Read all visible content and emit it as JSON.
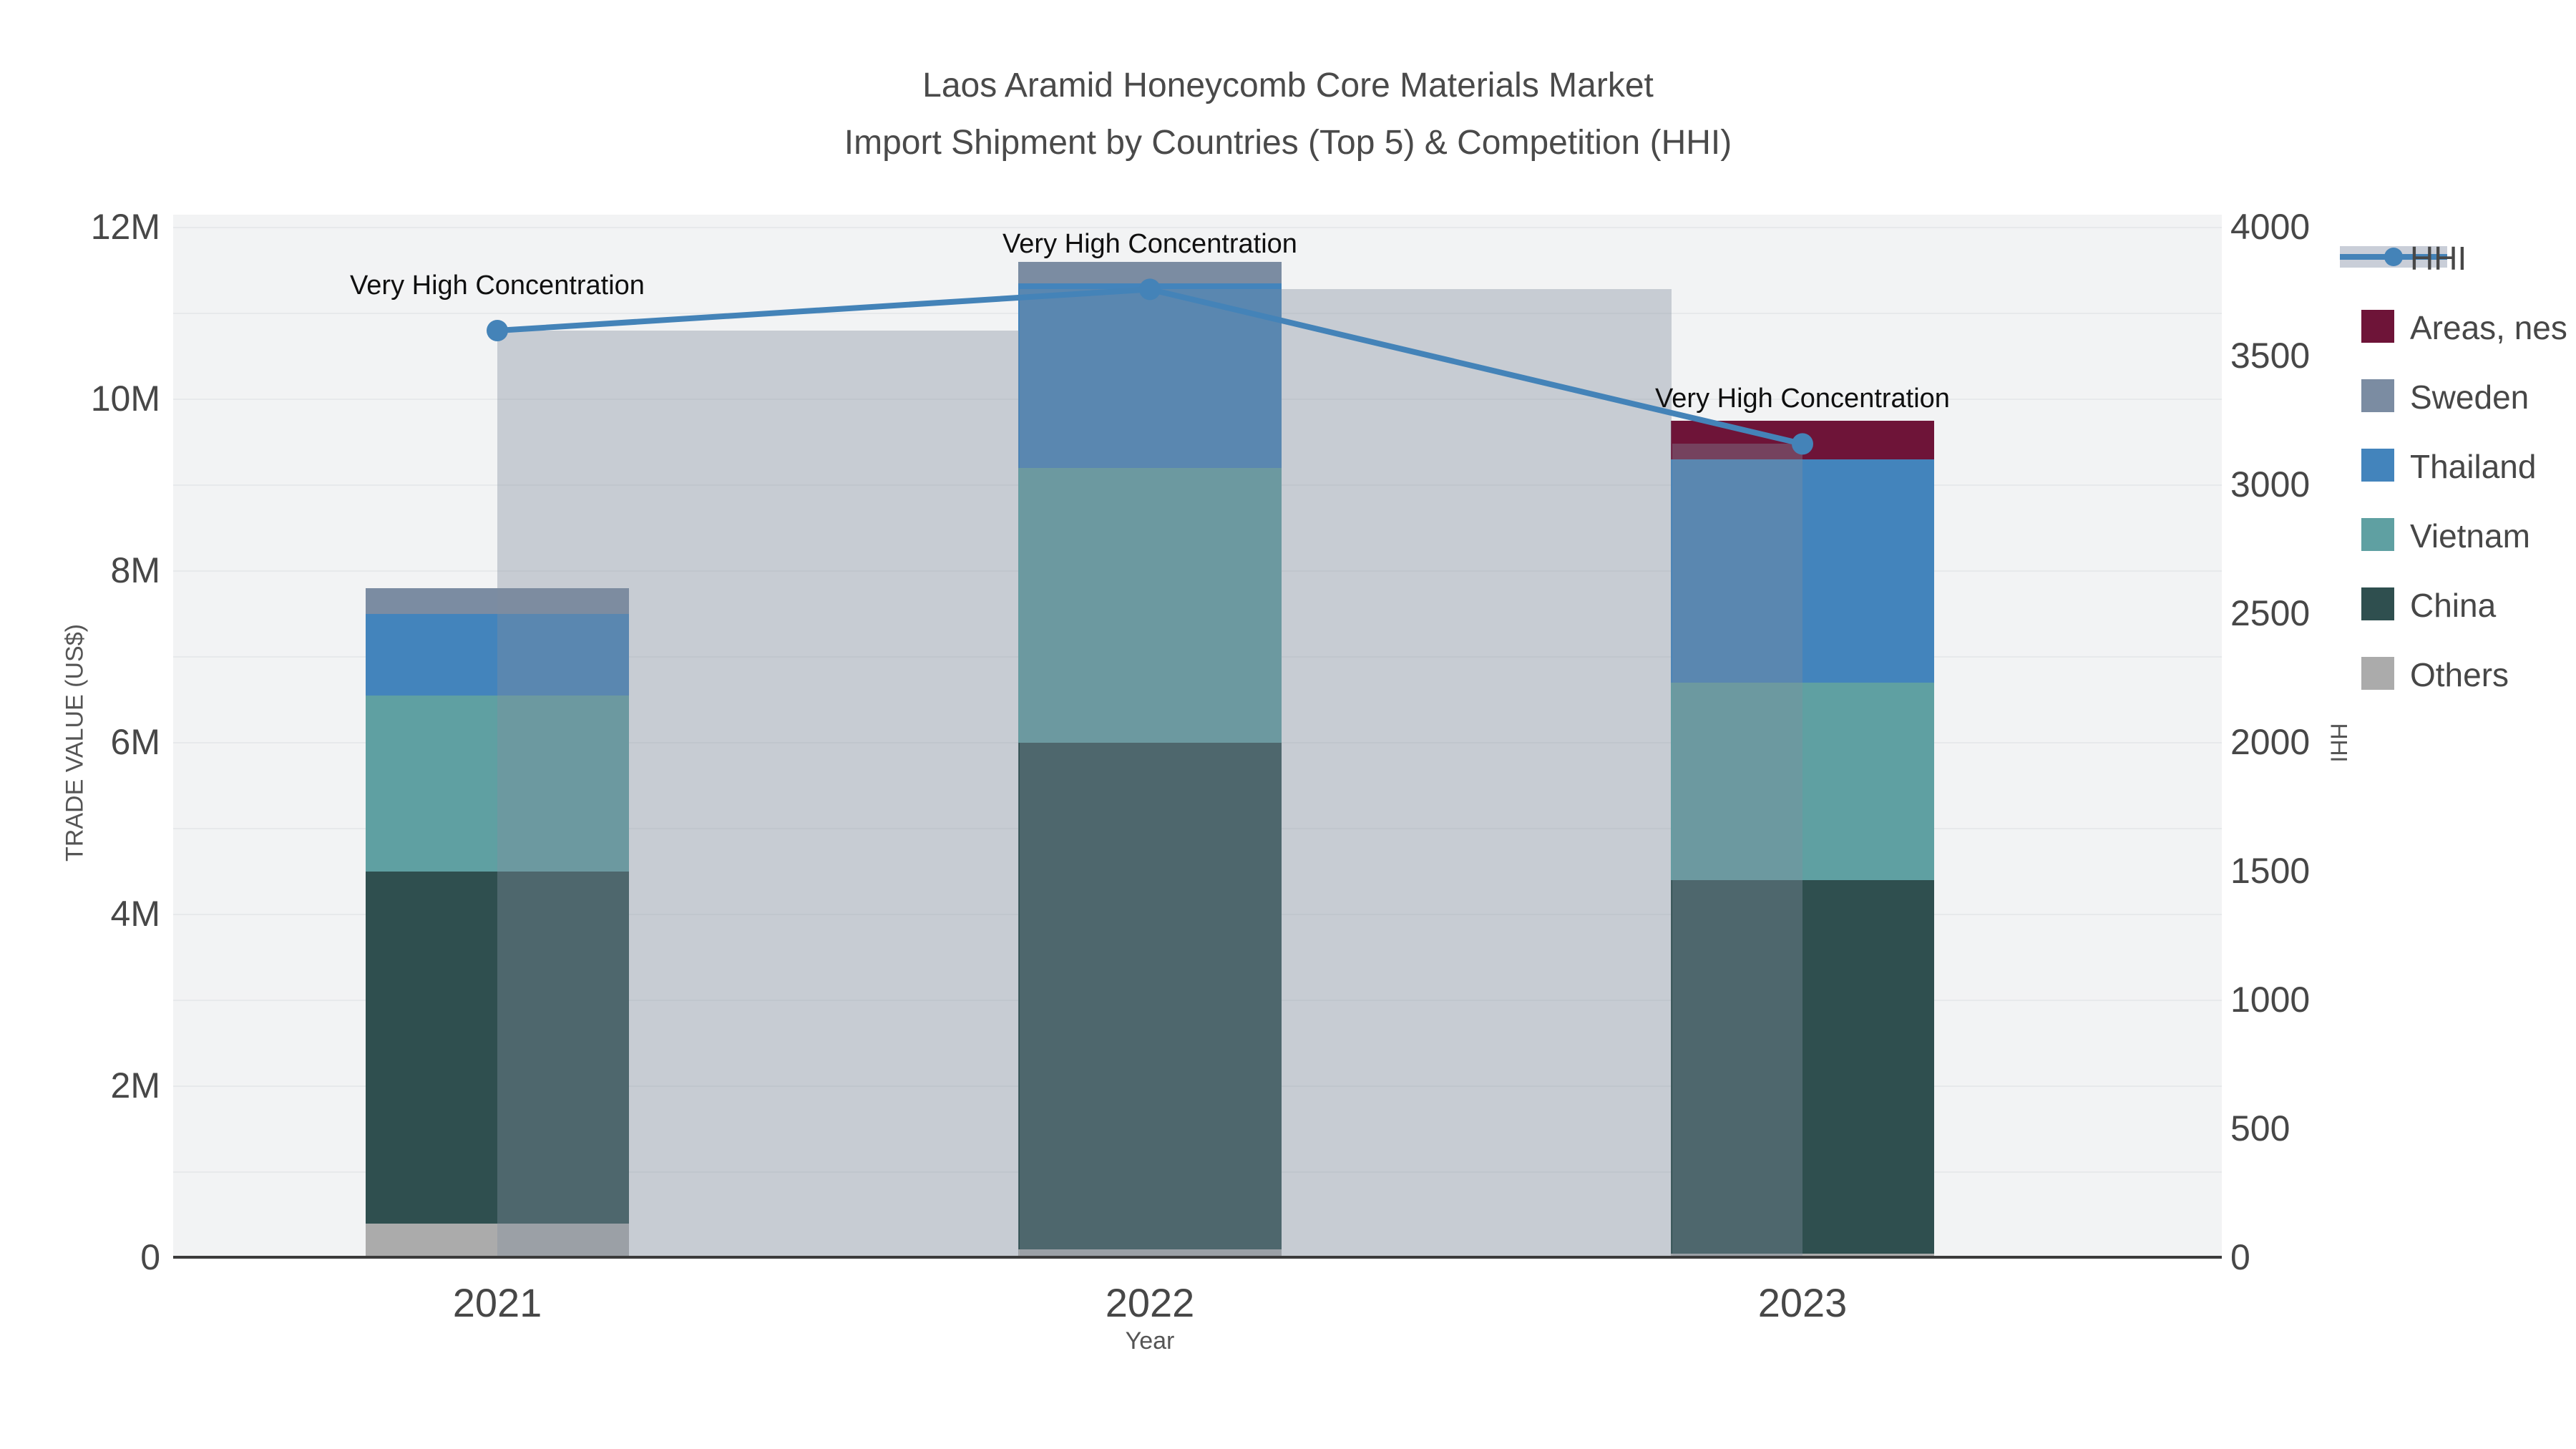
{
  "title": {
    "line1": "Laos Aramid Honeycomb Core Materials Market",
    "line2": "Import Shipment by Countries (Top 5) & Competition (HHI)"
  },
  "axes": {
    "x": {
      "label": "Year",
      "categories": [
        "2021",
        "2022",
        "2023"
      ]
    },
    "y_left": {
      "label": "TRADE VALUE (US$)",
      "ticks": [
        "0",
        "2M",
        "4M",
        "6M",
        "8M",
        "10M",
        "12M"
      ]
    },
    "y_right": {
      "label": "HHI",
      "ticks": [
        "0",
        "500",
        "1000",
        "1500",
        "2000",
        "2500",
        "3000",
        "3500",
        "4000"
      ]
    }
  },
  "legend": [
    {
      "label": "HHI",
      "swatch": "line"
    },
    {
      "label": "Areas, nes",
      "swatch": "#6e1438"
    },
    {
      "label": "Sweden",
      "swatch": "#7b8ca2"
    },
    {
      "label": "Thailand",
      "swatch": "#4384bc"
    },
    {
      "label": "Vietnam",
      "swatch": "#5fa0a2"
    },
    {
      "label": "China",
      "swatch": "#2f4f4f"
    },
    {
      "label": "Others",
      "swatch": "#ababab"
    }
  ],
  "annotations": [
    {
      "text": "Very High Concentration",
      "category": "2021"
    },
    {
      "text": "Very High Concentration",
      "category": "2022"
    },
    {
      "text": "Very High Concentration",
      "category": "2023"
    }
  ],
  "chart_data": {
    "type": "bar+line",
    "title": "Laos Aramid Honeycomb Core Materials Market — Import Shipment by Countries (Top 5) & Competition (HHI)",
    "categories": [
      "2021",
      "2022",
      "2023"
    ],
    "stack_order_bottom_to_top": [
      "Others",
      "China",
      "Vietnam",
      "Thailand",
      "Sweden",
      "Areas, nes"
    ],
    "series": [
      {
        "name": "Others",
        "color": "#ababab",
        "values_musd": [
          0.4,
          0.1,
          0.05
        ]
      },
      {
        "name": "China",
        "color": "#2f4f4f",
        "values_musd": [
          4.1,
          5.9,
          4.35
        ]
      },
      {
        "name": "Vietnam",
        "color": "#5fa0a2",
        "values_musd": [
          2.05,
          3.2,
          2.3
        ]
      },
      {
        "name": "Thailand",
        "color": "#4384bc",
        "values_musd": [
          0.95,
          2.15,
          2.6
        ]
      },
      {
        "name": "Sweden",
        "color": "#7b8ca2",
        "values_musd": [
          0.3,
          0.25,
          0.0
        ]
      },
      {
        "name": "Areas, nes",
        "color": "#6e1438",
        "values_musd": [
          0.0,
          0.0,
          0.45
        ]
      }
    ],
    "totals_musd": [
      7.8,
      11.6,
      9.75
    ],
    "line_series": {
      "name": "HHI",
      "axis": "right",
      "color": "#4483b8",
      "values": [
        3600,
        3760,
        3160
      ]
    },
    "xlabel": "Year",
    "ylabel": "TRADE VALUE (US$)",
    "ylabel_right": "HHI",
    "ylim_left_musd": [
      0,
      12
    ],
    "ylim_right": [
      0,
      4000
    ],
    "layout_hints": {
      "legend_position": "right",
      "grid": "horizontal, every 1M, subtle",
      "plot_bg": "#f2f3f4",
      "gridline_color": "#e7e9eb",
      "axisline_color": "#3b3b3b",
      "hhi_bar_fill": "rgba(130,142,158,0.38)",
      "hhi_legend_band": "#c9ced8",
      "hhi_bar_extents_in_category_units": [
        [
          0.0,
          0.8
        ],
        [
          -0.2,
          0.8
        ],
        [
          -0.2,
          0.0
        ]
      ]
    }
  }
}
